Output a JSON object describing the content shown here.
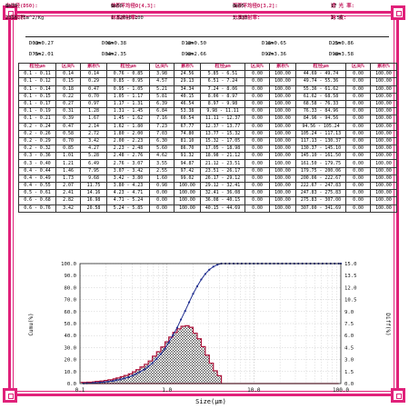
{
  "header": {
    "row1": [
      {
        "label": "中位径(D50):",
        "value": "1.38",
        "unit": "um"
      },
      {
        "label": "体积平均径D[4,3]:",
        "value": "1.50",
        "unit": "um"
      },
      {
        "label": "面积平均径D[3,2]:",
        "value": "0.95",
        "unit": "um"
      },
      {
        "label": "遮 光 率:",
        "value": "17",
        "unit": ""
      }
    ],
    "row2": [
      {
        "label": "比表面积:",
        "value": "2316.75m^2/Kg"
      },
      {
        "label": "样品折射率:",
        "value": "1.520+0.100"
      },
      {
        "label": "分质折射率:",
        "value": "1.333"
      },
      {
        "label": "跨 度:",
        "value": "1.56"
      }
    ]
  },
  "d_values": [
    [
      "D03=0.27",
      "um"
    ],
    [
      "D06=0.38",
      "um"
    ],
    [
      "D10=0.50",
      "um"
    ],
    [
      "D16=0.65",
      "um"
    ],
    [
      "D25=0.86",
      "um"
    ],
    [
      "D75=2.01",
      "um"
    ],
    [
      "D84=2.35",
      "um"
    ],
    [
      "D90=2.66",
      "um"
    ],
    [
      "D97=3.36",
      "um"
    ],
    [
      "D98=3.58",
      "um"
    ]
  ],
  "table": {
    "headers": [
      "粒径μm",
      "区间%",
      "累积%",
      "粒径μm",
      "区间%",
      "累积%",
      "粒径μm",
      "区间%",
      "累积%",
      "粒径μm",
      "区间%",
      "累积%"
    ],
    "rows": [
      [
        "0.1 - 0.11",
        "0.14",
        "0.14",
        "0.76 - 0.85",
        "3.98",
        "24.56",
        "5.85 - 6.51",
        "0.00",
        "100.00",
        "44.69 - 49.74",
        "0.00",
        "100.00"
      ],
      [
        "0.1 - 0.12",
        "0.15",
        "0.29",
        "0.85 - 0.95",
        "4.57",
        "29.13",
        "6.51 - 7.24",
        "0.00",
        "100.00",
        "49.74 - 55.36",
        "0.00",
        "100.00"
      ],
      [
        "0.1 - 0.14",
        "0.18",
        "0.47",
        "0.95 - 1.05",
        "5.21",
        "34.34",
        "7.24 - 8.06",
        "0.00",
        "100.00",
        "55.36 - 61.62",
        "0.00",
        "100.00"
      ],
      [
        "0.1 - 0.15",
        "0.22",
        "0.70",
        "1.05 - 1.17",
        "5.81",
        "40.15",
        "8.06 - 8.97",
        "0.00",
        "100.00",
        "61.62 - 68.58",
        "0.00",
        "100.00"
      ],
      [
        "0.1 - 0.17",
        "0.27",
        "0.97",
        "1.17 - 1.31",
        "6.39",
        "46.54",
        "8.97 - 9.98",
        "0.00",
        "100.00",
        "68.58 - 76.33",
        "0.00",
        "100.00"
      ],
      [
        "0.1 - 0.19",
        "0.31",
        "1.28",
        "1.31 - 1.45",
        "6.84",
        "53.38",
        "9.98 - 11.11",
        "0.00",
        "100.00",
        "76.33 - 84.96",
        "0.00",
        "100.00"
      ],
      [
        "0.1 - 0.21",
        "0.39",
        "1.67",
        "1.45 - 1.62",
        "7.16",
        "60.54",
        "11.11 - 12.37",
        "0.00",
        "100.00",
        "84.96 - 94.56",
        "0.00",
        "100.00"
      ],
      [
        "0.2 - 0.24",
        "0.47",
        "2.14",
        "1.62 - 1.80",
        "7.23",
        "67.77",
        "12.37 - 13.77",
        "0.00",
        "100.00",
        "94.56 - 105.24",
        "0.00",
        "100.00"
      ],
      [
        "0.2 - 0.26",
        "0.58",
        "2.72",
        "1.80 - 2.00",
        "7.03",
        "74.80",
        "13.77 - 15.32",
        "0.00",
        "100.00",
        "105.24 - 117.13",
        "0.00",
        "100.00"
      ],
      [
        "0.2 - 0.29",
        "0.70",
        "3.42",
        "2.00 - 2.23",
        "6.30",
        "81.10",
        "15.32 - 17.05",
        "0.00",
        "100.00",
        "117.13 - 130.37",
        "0.00",
        "100.00"
      ],
      [
        "0.2 - 0.32",
        "0.85",
        "4.27",
        "2.23 - 2.48",
        "5.60",
        "86.70",
        "17.05 - 18.98",
        "0.00",
        "100.00",
        "130.37 - 145.10",
        "0.00",
        "100.00"
      ],
      [
        "0.3 - 0.36",
        "1.01",
        "5.28",
        "2.48 - 2.76",
        "4.62",
        "91.32",
        "18.98 - 21.12",
        "0.00",
        "100.00",
        "145.10 - 161.50",
        "0.00",
        "100.00"
      ],
      [
        "0.3 - 0.40",
        "1.21",
        "6.49",
        "2.76 - 3.07",
        "3.55",
        "94.87",
        "21.12 - 23.51",
        "0.00",
        "100.00",
        "161.50 - 179.75",
        "0.00",
        "100.00"
      ],
      [
        "0.4 - 0.44",
        "1.46",
        "7.95",
        "3.07 - 3.42",
        "2.55",
        "97.42",
        "23.51 - 26.17",
        "0.00",
        "100.00",
        "179.75 - 200.06",
        "0.00",
        "100.00"
      ],
      [
        "0.4 - 0.49",
        "1.73",
        "9.68",
        "3.42 - 3.80",
        "1.60",
        "99.02",
        "26.17 - 29.12",
        "0.00",
        "100.00",
        "200.06 - 222.67",
        "0.00",
        "100.00"
      ],
      [
        "0.4 - 0.55",
        "2.07",
        "11.75",
        "3.80 - 4.23",
        "0.98",
        "100.00",
        "29.12 - 32.41",
        "0.00",
        "100.00",
        "222.67 - 247.83",
        "0.00",
        "100.00"
      ],
      [
        "0.5 - 0.61",
        "2.41",
        "14.16",
        "4.23 - 4.71",
        "0.00",
        "100.00",
        "32.41 - 36.08",
        "0.00",
        "100.00",
        "247.83 - 275.83",
        "0.00",
        "100.00"
      ],
      [
        "0.6 - 0.68",
        "2.82",
        "16.98",
        "4.71 - 5.24",
        "0.00",
        "100.00",
        "36.08 - 40.15",
        "0.00",
        "100.00",
        "275.83 - 307.00",
        "0.00",
        "100.00"
      ],
      [
        "0.6 - 0.76",
        "3.42",
        "20.58",
        "5.24 - 5.85",
        "0.00",
        "100.00",
        "40.15 - 44.69",
        "0.00",
        "100.00",
        "307.00 - 341.69",
        "0.00",
        "100.00"
      ]
    ]
  },
  "chart_data": {
    "type": "area",
    "title": "",
    "xlabel": "Size(μm)",
    "ylabel_left": "Cumu(%)",
    "ylabel_right": "Diff(%)",
    "x_scale": "log",
    "xlim": [
      0.1,
      100
    ],
    "x_ticks": [
      "0.1",
      "1.0",
      "10.0",
      "100.0"
    ],
    "ylim_left": [
      0,
      100
    ],
    "ylim_right": [
      0,
      15
    ],
    "y_ticks_left": [
      "0.0",
      "10.0",
      "20.0",
      "30.0",
      "40.0",
      "50.0",
      "60.0",
      "70.0",
      "80.0",
      "90.0",
      "100.0"
    ],
    "y_ticks_right": [
      "0.0",
      "1.5",
      "3.0",
      "4.5",
      "6.0",
      "7.5",
      "9.0",
      "10.5",
      "12.0",
      "13.5",
      "15.0"
    ],
    "grid": true,
    "colors": {
      "cumulative": "#1f2d8f",
      "differential": "#b0143c",
      "grid": "#bbbbbb"
    },
    "size_points": [
      0.11,
      0.12,
      0.14,
      0.15,
      0.17,
      0.19,
      0.21,
      0.24,
      0.26,
      0.29,
      0.32,
      0.36,
      0.4,
      0.44,
      0.49,
      0.55,
      0.61,
      0.68,
      0.76,
      0.85,
      0.95,
      1.05,
      1.17,
      1.31,
      1.45,
      1.62,
      1.8,
      2.0,
      2.23,
      2.48,
      2.76,
      3.07,
      3.42,
      3.8,
      4.23,
      4.71,
      5.24,
      5.85,
      6.51,
      7.24,
      8.06,
      8.97,
      9.98,
      11.11,
      12.37,
      13.77,
      15.32,
      17.05,
      18.98,
      21.12,
      23.51,
      26.17,
      29.12,
      32.41,
      36.08,
      40.15,
      44.69,
      49.74,
      55.36,
      61.62,
      68.58,
      76.33,
      84.96,
      94.56
    ],
    "cumulative": [
      0.14,
      0.29,
      0.47,
      0.7,
      0.97,
      1.28,
      1.67,
      2.14,
      2.72,
      3.42,
      4.27,
      5.28,
      6.49,
      7.95,
      9.68,
      11.75,
      14.16,
      16.98,
      20.58,
      24.56,
      29.13,
      34.34,
      40.15,
      46.54,
      53.38,
      60.54,
      67.77,
      74.8,
      81.1,
      86.7,
      91.32,
      94.87,
      97.42,
      99.02,
      100.0,
      100,
      100,
      100,
      100,
      100,
      100,
      100,
      100,
      100,
      100,
      100,
      100,
      100,
      100,
      100,
      100,
      100,
      100,
      100,
      100,
      100,
      100,
      100,
      100,
      100,
      100,
      100,
      100,
      100
    ],
    "differential": [
      0.14,
      0.15,
      0.18,
      0.22,
      0.27,
      0.31,
      0.39,
      0.47,
      0.58,
      0.7,
      0.85,
      1.01,
      1.21,
      1.46,
      1.73,
      2.07,
      2.41,
      2.82,
      3.42,
      3.98,
      4.57,
      5.21,
      5.81,
      6.39,
      6.84,
      7.16,
      7.23,
      7.03,
      6.3,
      5.6,
      4.62,
      3.55,
      2.55,
      1.6,
      0.98,
      0,
      0,
      0,
      0,
      0,
      0,
      0,
      0,
      0,
      0,
      0,
      0,
      0,
      0,
      0,
      0,
      0,
      0,
      0,
      0,
      0,
      0,
      0,
      0,
      0,
      0,
      0,
      0,
      0
    ]
  }
}
